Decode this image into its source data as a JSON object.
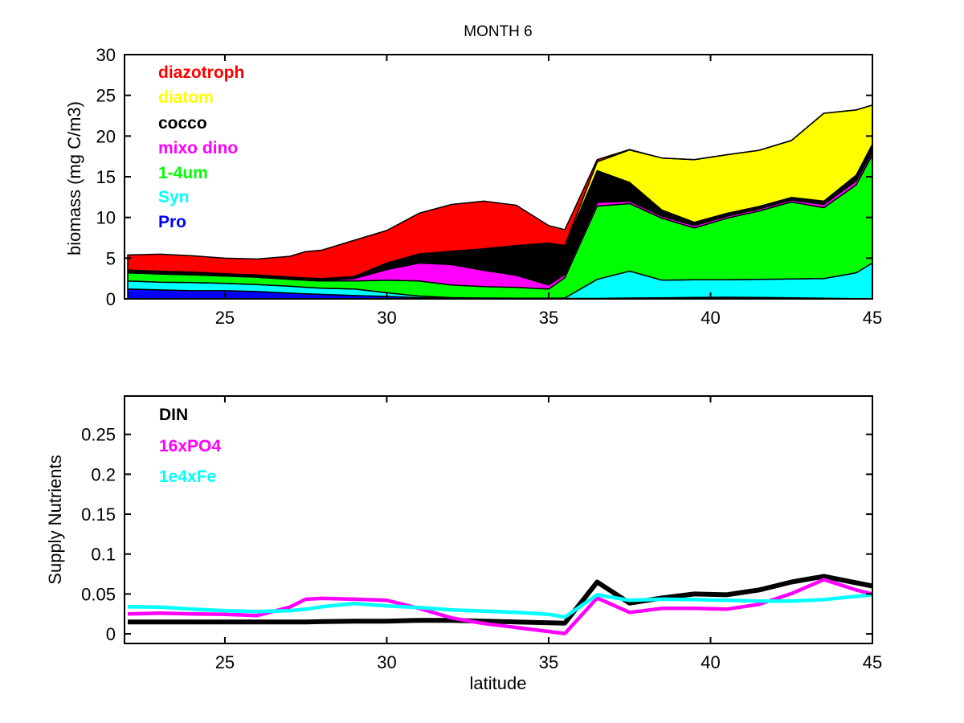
{
  "figure": {
    "background": "#ffffff"
  },
  "chart_data": [
    {
      "type": "area",
      "title": "MONTH 6",
      "xlabel": "",
      "ylabel": "biomass (mg C/m3)",
      "xlim": [
        21.9,
        45
      ],
      "ylim": [
        0,
        30
      ],
      "xticks": [
        25,
        30,
        35,
        40,
        45
      ],
      "xtick_labels": [
        "25",
        "30",
        "35",
        "40",
        "45"
      ],
      "yticks": [
        0,
        5,
        10,
        15,
        20,
        25,
        30
      ],
      "ytick_labels": [
        "0",
        "5",
        "10",
        "15",
        "20",
        "25",
        "30"
      ],
      "grid": false,
      "stacking": "bottom-to-top",
      "x": [
        22,
        23,
        24,
        25,
        26,
        27,
        27.5,
        28,
        29,
        30,
        31,
        32,
        33,
        34,
        35,
        35.5,
        36.5,
        37.5,
        38.5,
        39.5,
        40.5,
        41.5,
        42.5,
        43.5,
        44.5,
        45
      ],
      "series": [
        {
          "name": "Pro",
          "color": "#0000ff",
          "values": [
            1.2,
            1.1,
            1.0,
            1.0,
            0.9,
            0.7,
            0.62,
            0.55,
            0.4,
            0.3,
            0.15,
            0.05,
            0.03,
            0.03,
            0.03,
            0.05,
            0.05,
            0.1,
            0.12,
            0.18,
            0.2,
            0.18,
            0.12,
            0.08,
            0.03,
            0.02
          ]
        },
        {
          "name": "Syn",
          "color": "#00ffff",
          "values": [
            1.0,
            0.95,
            1.0,
            0.9,
            0.85,
            0.85,
            0.8,
            0.75,
            0.8,
            0.45,
            0.2,
            0.1,
            0.07,
            0.05,
            0.04,
            0.05,
            2.35,
            3.3,
            2.18,
            2.17,
            2.15,
            2.22,
            2.33,
            2.42,
            3.17,
            4.38
          ]
        },
        {
          "name": "1-4um",
          "color": "#00ff00",
          "values": [
            1.0,
            1.0,
            0.95,
            0.9,
            0.9,
            0.85,
            0.87,
            0.9,
            1.0,
            1.55,
            1.85,
            1.55,
            1.4,
            1.32,
            1.13,
            2.5,
            9.0,
            8.3,
            7.6,
            6.35,
            7.55,
            8.4,
            9.45,
            8.7,
            10.8,
            13.3
          ]
        },
        {
          "name": "mixo dino",
          "color": "#ff00ff",
          "values": [
            0.02,
            0.02,
            0.02,
            0.02,
            0.02,
            0.03,
            0.04,
            0.05,
            0.3,
            1.3,
            2.2,
            2.5,
            2.0,
            1.5,
            0.5,
            0.4,
            0.45,
            0.3,
            0.25,
            0.3,
            0.25,
            0.25,
            0.25,
            0.4,
            0.5,
            0.4
          ]
        },
        {
          "name": "cocco",
          "color": "#000000",
          "values": [
            0.3,
            0.3,
            0.3,
            0.25,
            0.25,
            0.22,
            0.21,
            0.2,
            0.2,
            0.7,
            1.0,
            1.5,
            2.5,
            3.5,
            5.0,
            3.4,
            3.9,
            2.3,
            0.75,
            0.4,
            0.35,
            0.3,
            0.3,
            0.4,
            0.7,
            0.9
          ]
        },
        {
          "name": "diatom",
          "color": "#ffff00",
          "values": [
            0.02,
            0.02,
            0.02,
            0.02,
            0.02,
            0.02,
            0.025,
            0.03,
            0.05,
            0.1,
            0.12,
            0.15,
            0.15,
            0.15,
            0.15,
            0.15,
            1.1,
            4.0,
            6.4,
            7.7,
            7.2,
            6.9,
            7.0,
            10.8,
            8.0,
            4.8
          ]
        },
        {
          "name": "diazotroph",
          "color": "#ff0000",
          "values": [
            1.85,
            2.1,
            2.0,
            1.9,
            1.95,
            2.55,
            3.25,
            3.5,
            4.45,
            4.0,
            5.0,
            5.75,
            5.85,
            4.95,
            2.15,
            1.95,
            0.25,
            0.05,
            0,
            0,
            0,
            0,
            0,
            0,
            0,
            0
          ]
        }
      ],
      "legend_entries": [
        {
          "label": "diazotroph",
          "color": "#ff0000"
        },
        {
          "label": "diatom",
          "color": "#ffff00"
        },
        {
          "label": "cocco",
          "color": "#000000"
        },
        {
          "label": "mixo dino",
          "color": "#ff00ff"
        },
        {
          "label": "1-4um",
          "color": "#00ff00"
        },
        {
          "label": "Syn",
          "color": "#00ffff"
        },
        {
          "label": "Pro",
          "color": "#0000ff"
        }
      ],
      "legend_position": "upper-left-inside"
    },
    {
      "type": "line",
      "title": "",
      "xlabel": "latitude",
      "ylabel": "Supply Nutrients",
      "xlim": [
        21.9,
        45
      ],
      "ylim": [
        -0.012,
        0.298
      ],
      "xticks": [
        25,
        30,
        35,
        40,
        45
      ],
      "xtick_labels": [
        "25",
        "30",
        "35",
        "40",
        "45"
      ],
      "yticks": [
        0,
        0.05,
        0.1,
        0.15,
        0.2,
        0.25
      ],
      "ytick_labels": [
        "0",
        "0.05",
        "0.1",
        "0.15",
        "0.2",
        "0.25"
      ],
      "grid": false,
      "x": [
        22,
        23,
        24,
        25,
        26,
        27,
        27.5,
        28,
        29,
        30,
        31,
        32,
        33,
        34,
        35,
        35.5,
        36.5,
        37.5,
        38.5,
        39.5,
        40.5,
        41.5,
        42.5,
        43.5,
        44.5,
        45
      ],
      "series": [
        {
          "name": "DIN",
          "color": "#000000",
          "width": 6,
          "values": [
            0.015,
            0.015,
            0.015,
            0.015,
            0.015,
            0.015,
            0.015,
            0.0155,
            0.016,
            0.016,
            0.017,
            0.017,
            0.016,
            0.015,
            0.014,
            0.0135,
            0.065,
            0.0385,
            0.045,
            0.05,
            0.049,
            0.055,
            0.065,
            0.072,
            0.064,
            0.06
          ]
        },
        {
          "name": "16xPO4",
          "color": "#ff00ff",
          "width": 4.5,
          "values": [
            0.025,
            0.026,
            0.025,
            0.0245,
            0.023,
            0.0335,
            0.0435,
            0.0445,
            0.0435,
            0.042,
            0.032,
            0.02,
            0.013,
            0.008,
            0.003,
            0.0005,
            0.045,
            0.027,
            0.032,
            0.032,
            0.031,
            0.037,
            0.0505,
            0.068,
            0.055,
            0.05
          ]
        },
        {
          "name": "1e4xFe",
          "color": "#00ffff",
          "width": 4.5,
          "values": [
            0.034,
            0.0335,
            0.031,
            0.029,
            0.028,
            0.029,
            0.031,
            0.034,
            0.038,
            0.035,
            0.033,
            0.03,
            0.0285,
            0.027,
            0.0245,
            0.021,
            0.049,
            0.042,
            0.0435,
            0.043,
            0.042,
            0.041,
            0.041,
            0.043,
            0.047,
            0.049
          ]
        }
      ],
      "legend_entries": [
        {
          "label": "DIN",
          "color": "#000000"
        },
        {
          "label": "16xPO4",
          "color": "#ff00ff"
        },
        {
          "label": "1e4xFe",
          "color": "#00ffff"
        }
      ],
      "legend_position": "upper-left-inside"
    }
  ]
}
